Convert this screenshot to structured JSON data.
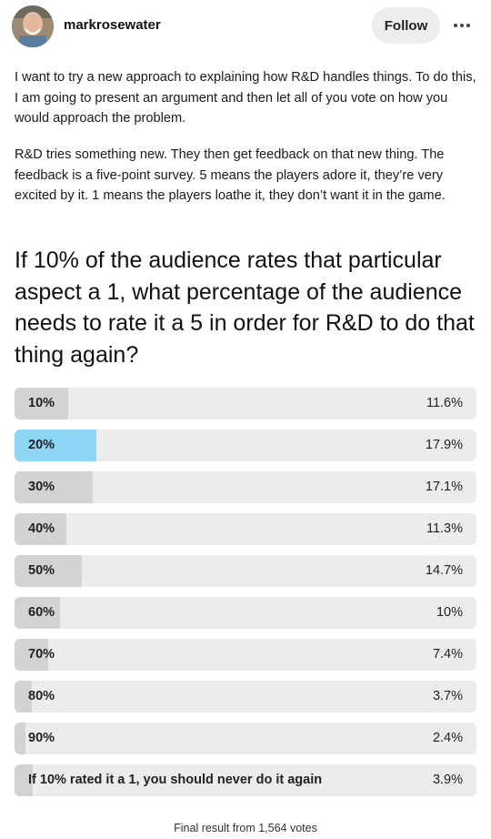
{
  "post": {
    "username": "markrosewater",
    "follow_label": "Follow",
    "more_icon": "more-horizontal-icon",
    "paragraphs": [
      "I want to try a new approach to explaining how R&D handles things. To do this, I am going to present an argument and then let all of you vote on how you would approach the problem.",
      "R&D tries something new. They then get feedback on that new thing. The feedback is a five-point survey. 5 means the players adore it, they’re very excited by it. 1 means the players loathe it, they don’t want it in the game."
    ],
    "question": "If 10% of the audience rates that particular aspect a 1, what percentage of the audience needs to rate it a 5 in order for R&D to do that thing again?"
  },
  "poll": {
    "selected_index": 1,
    "colors": {
      "bar": "#d3d3d3",
      "selected_bar": "#8ed6f5",
      "track": "#ececec"
    },
    "options": [
      {
        "label": "10%",
        "percent_text": "11.6%",
        "value": 11.6
      },
      {
        "label": "20%",
        "percent_text": "17.9%",
        "value": 17.9
      },
      {
        "label": "30%",
        "percent_text": "17.1%",
        "value": 17.1
      },
      {
        "label": "40%",
        "percent_text": "11.3%",
        "value": 11.3
      },
      {
        "label": "50%",
        "percent_text": "14.7%",
        "value": 14.7
      },
      {
        "label": "60%",
        "percent_text": "10%",
        "value": 10
      },
      {
        "label": "70%",
        "percent_text": "7.4%",
        "value": 7.4
      },
      {
        "label": "80%",
        "percent_text": "3.7%",
        "value": 3.7
      },
      {
        "label": "90%",
        "percent_text": "2.4%",
        "value": 2.4
      },
      {
        "label": "If 10% rated it a 1, you should never do it again",
        "percent_text": "3.9%",
        "value": 3.9
      }
    ],
    "footer": "Final result from 1,564 votes"
  }
}
